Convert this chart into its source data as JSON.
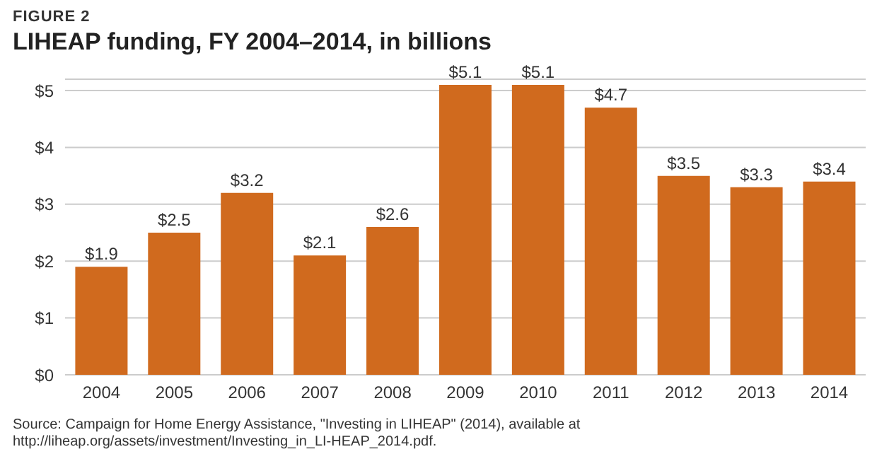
{
  "chart_data": {
    "type": "bar",
    "subtitle": "FIGURE 2",
    "title": "LIHEAP funding, FY 2004–2014, in billions",
    "categories": [
      "2004",
      "2005",
      "2006",
      "2007",
      "2008",
      "2009",
      "2010",
      "2011",
      "2012",
      "2013",
      "2014"
    ],
    "values": [
      1.9,
      2.5,
      3.2,
      2.1,
      2.6,
      5.1,
      5.1,
      4.7,
      3.5,
      3.3,
      3.4
    ],
    "value_labels": [
      "$1.9",
      "$2.5",
      "$3.2",
      "$2.1",
      "$2.6",
      "$5.1",
      "$5.1",
      "$4.7",
      "$3.5",
      "$3.3",
      "$3.4"
    ],
    "color": "#d06a1e",
    "ylim": [
      0,
      5.2
    ],
    "yticks": [
      {
        "value": 0,
        "label": "$0"
      },
      {
        "value": 1,
        "label": "$1"
      },
      {
        "value": 2,
        "label": "$2"
      },
      {
        "value": 3,
        "label": "$3"
      },
      {
        "value": 4,
        "label": "$4"
      },
      {
        "value": 5,
        "label": "$5"
      }
    ],
    "grid": "y",
    "annotations": [
      "Source: Campaign for Home Energy Assistance, \"Investing in LIHEAP\" (2014), available at http://liheap.org/assets/investment/Investing_in_LI-HEAP_2014.pdf."
    ]
  }
}
